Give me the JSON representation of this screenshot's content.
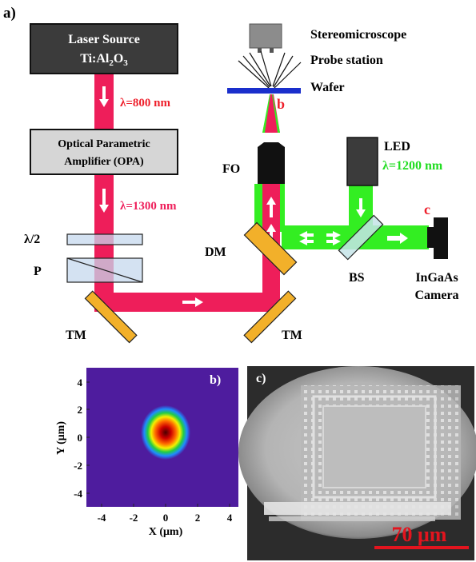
{
  "panel_a": {
    "label": "a)",
    "laser_source": {
      "line1": "Laser Source",
      "line2_base": "Ti:Al",
      "line2_sub1": "2",
      "line2_mid": "O",
      "line2_sub2": "3"
    },
    "opa": {
      "line1": "Optical Parametric",
      "line2": "Amplifier (OPA)"
    },
    "wavelength_800": "λ=800 nm",
    "wavelength_1300": "λ=1300 nm",
    "half_wave_plate": "λ/2",
    "polarizer": "P",
    "turning_mirror_left": "TM",
    "turning_mirror_right": "TM",
    "dichroic_mirror": "DM",
    "focusing_objective": "FO",
    "stereomicroscope": "Stereomicroscope",
    "probe_station": "Probe station",
    "wafer": "Wafer",
    "marker_b": "b",
    "marker_c": "c",
    "led_label": "LED",
    "led_wavelength": "λ=1200 nm",
    "beam_splitter": "BS",
    "camera_line1": "InGaAs",
    "camera_line2": "Camera"
  },
  "panel_b": {
    "label": "b)",
    "xlabel": "X (μm)",
    "ylabel": "Y (μm)",
    "xticks": [
      "-4",
      "-2",
      "0",
      "2",
      "4"
    ],
    "yticks": [
      "4",
      "2",
      "0",
      "-2",
      "-4"
    ]
  },
  "panel_c": {
    "label": "c)",
    "scale_bar": "70 μm"
  },
  "colors": {
    "laser_beam": "#ee1e5a",
    "led_beam": "#33ee22",
    "wafer": "#1a2fcc",
    "mirror": "#f2b02a",
    "text_red": "#ee1e2a",
    "text_green": "#22dd22",
    "background_b": "#4e1c9e"
  }
}
